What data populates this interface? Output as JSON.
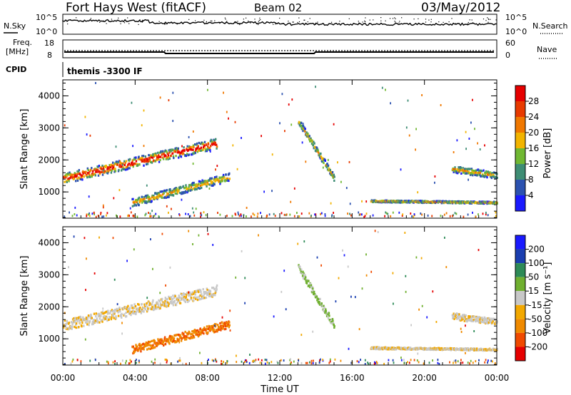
{
  "header": {
    "station": "Fort Hays West (fitACF)",
    "beam": "Beam 02",
    "date": "03/May/2012"
  },
  "top_panels": {
    "nsky_label": "N.Sky",
    "nsearch_label": "N.Search",
    "noise_ticks": [
      "10^5",
      "10^0"
    ],
    "freq_label_line1": "Freq.",
    "freq_label_line2": "[MHz]",
    "freq_ticks": [
      "18",
      "8"
    ],
    "nave_label": "Nave",
    "nave_ticks": [
      "60",
      "0"
    ],
    "cpid_label": "CPID",
    "cpid_value": "themis -3300 IF"
  },
  "time_axis": {
    "label": "Time UT",
    "ticks": [
      "00:00",
      "04:00",
      "08:00",
      "12:00",
      "16:00",
      "20:00",
      "00:00"
    ]
  },
  "colors": {
    "power": [
      "#1a1aff",
      "#2c52b0",
      "#3e8d74",
      "#70b832",
      "#f2b400",
      "#f07800",
      "#e83a00",
      "#e60000"
    ],
    "velocity": [
      "#e60000",
      "#f04a00",
      "#f08a00",
      "#f2a800",
      "#c8c8c8",
      "#70b030",
      "#2e8b57",
      "#1a3eb0",
      "#1a1aff"
    ]
  },
  "chart_data": [
    {
      "type": "heatmap",
      "ylabel": "Slant Range [km]",
      "xlabel": "",
      "y_ticks": [
        "1000",
        "2000",
        "3000",
        "4000"
      ],
      "ylim": [
        180,
        4500
      ],
      "colorbar": {
        "label": "Power [dB]",
        "ticks": [
          "4",
          "8",
          "12",
          "16",
          "20",
          "24",
          "28"
        ],
        "range": [
          0,
          30
        ]
      },
      "features": [
        {
          "start_hour": 0.0,
          "end_hour": 8.5,
          "range_start_km": 1400,
          "range_end_km": 2500,
          "width_km": 320,
          "note": ""
        },
        {
          "start_hour": 3.8,
          "end_hour": 9.2,
          "range_start_km": 650,
          "range_end_km": 1450,
          "width_km": 250,
          "note": ""
        },
        {
          "start_hour": 13.0,
          "end_hour": 15.0,
          "range_start_km": 3200,
          "range_end_km": 1400,
          "width_km": 200,
          "note": ""
        },
        {
          "start_hour": 21.5,
          "end_hour": 24.0,
          "range_start_km": 1700,
          "range_end_km": 1500,
          "width_km": 200,
          "note": ""
        },
        {
          "start_hour": 17.0,
          "end_hour": 24.0,
          "range_start_km": 700,
          "range_end_km": 650,
          "width_km": 60,
          "note": ""
        }
      ]
    },
    {
      "type": "heatmap",
      "ylabel": "Slant Range [km]",
      "xlabel": "Time UT",
      "y_ticks": [
        "1000",
        "2000",
        "3000",
        "4000"
      ],
      "ylim": [
        180,
        4500
      ],
      "colorbar": {
        "label": "Velocity [m s⁻¹]",
        "ticks": [
          "200",
          "100",
          "50",
          "15",
          "-15",
          "-50",
          "-100",
          "-200"
        ],
        "range": [
          -250,
          250
        ]
      },
      "features": [
        {
          "start_hour": 0.0,
          "end_hour": 8.5,
          "range_start_km": 1400,
          "range_end_km": 2500,
          "width_km": 320,
          "velocity": -10
        },
        {
          "start_hour": 3.8,
          "end_hour": 9.2,
          "range_start_km": 650,
          "range_end_km": 1450,
          "width_km": 250,
          "velocity": -70
        },
        {
          "start_hour": 13.0,
          "end_hour": 15.0,
          "range_start_km": 3200,
          "range_end_km": 1400,
          "width_km": 200,
          "velocity": 20
        },
        {
          "start_hour": 21.5,
          "end_hour": 24.0,
          "range_start_km": 1700,
          "range_end_km": 1500,
          "width_km": 200,
          "velocity": -10
        },
        {
          "start_hour": 17.0,
          "end_hour": 24.0,
          "range_start_km": 700,
          "range_end_km": 650,
          "width_km": 60,
          "velocity": -10
        }
      ]
    }
  ]
}
